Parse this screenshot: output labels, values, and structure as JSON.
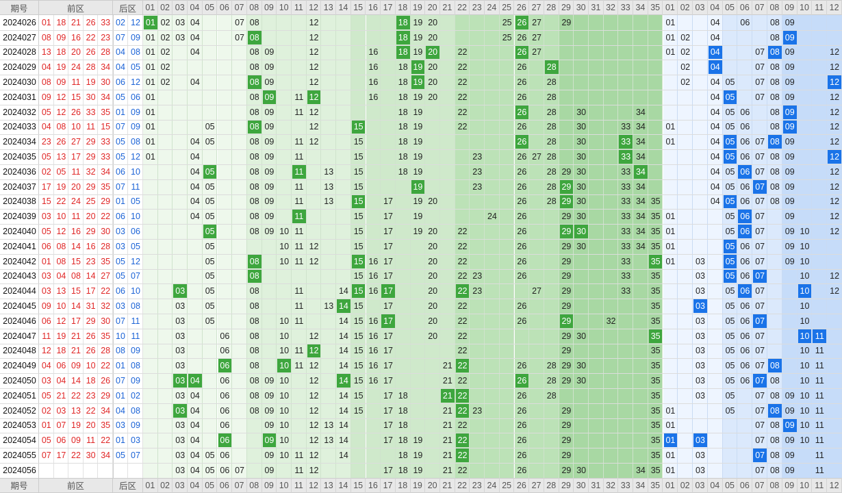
{
  "header": {
    "issue": "期号",
    "front": "前区",
    "back": "后区",
    "front_cols": [
      "01",
      "02",
      "03",
      "04",
      "05",
      "06",
      "07",
      "08",
      "09",
      "10",
      "11",
      "12",
      "13",
      "14",
      "15",
      "16",
      "17",
      "18",
      "19",
      "20",
      "21",
      "22",
      "23",
      "24",
      "25",
      "26",
      "27",
      "28",
      "29",
      "30",
      "31",
      "32",
      "33",
      "34",
      "35"
    ],
    "back_cols": [
      "01",
      "02",
      "03",
      "04",
      "05",
      "06",
      "07",
      "08",
      "09",
      "10",
      "11",
      "12"
    ]
  },
  "rows": [
    {
      "issue": "2024026",
      "front": [
        "01",
        "18",
        "21",
        "26",
        "33"
      ],
      "back": [
        "02",
        "12"
      ],
      "fz": [
        "01",
        "02",
        "03",
        "04",
        "07",
        "08",
        "12",
        "18",
        "19",
        "20",
        "25",
        "26",
        "27",
        "29"
      ],
      "fh": [
        "01",
        "18",
        "26"
      ],
      "bz": [
        "01",
        "04",
        "06",
        "08",
        "09"
      ],
      "bh": []
    },
    {
      "issue": "2024027",
      "front": [
        "08",
        "09",
        "16",
        "22",
        "23"
      ],
      "back": [
        "07",
        "09"
      ],
      "fz": [
        "01",
        "02",
        "03",
        "04",
        "07",
        "08",
        "12",
        "18",
        "19",
        "20",
        "25",
        "26",
        "27"
      ],
      "fh": [
        "08",
        "18"
      ],
      "bz": [
        "01",
        "02",
        "04",
        "08",
        "09"
      ],
      "bh": [
        "09"
      ]
    },
    {
      "issue": "2024028",
      "front": [
        "13",
        "18",
        "20",
        "26",
        "28"
      ],
      "back": [
        "04",
        "08"
      ],
      "fz": [
        "01",
        "02",
        "04",
        "08",
        "09",
        "12",
        "16",
        "18",
        "19",
        "20",
        "22",
        "26",
        "27"
      ],
      "fh": [
        "18",
        "20",
        "26"
      ],
      "bz": [
        "01",
        "02",
        "04",
        "07",
        "08",
        "09",
        "12"
      ],
      "bh": [
        "04",
        "08"
      ]
    },
    {
      "issue": "2024029",
      "front": [
        "04",
        "19",
        "24",
        "28",
        "34"
      ],
      "back": [
        "04",
        "05"
      ],
      "fz": [
        "01",
        "02",
        "08",
        "09",
        "12",
        "16",
        "18",
        "19",
        "20",
        "22",
        "26",
        "28"
      ],
      "fh": [
        "19",
        "28"
      ],
      "bz": [
        "02",
        "04",
        "07",
        "08",
        "09",
        "12"
      ],
      "bh": [
        "04"
      ]
    },
    {
      "issue": "2024030",
      "front": [
        "08",
        "09",
        "11",
        "19",
        "30"
      ],
      "back": [
        "06",
        "12"
      ],
      "fz": [
        "01",
        "02",
        "04",
        "08",
        "09",
        "12",
        "16",
        "18",
        "19",
        "20",
        "22",
        "26",
        "28"
      ],
      "fh": [
        "08",
        "19"
      ],
      "bz": [
        "02",
        "04",
        "05",
        "07",
        "08",
        "09",
        "12"
      ],
      "bh": [
        "12"
      ]
    },
    {
      "issue": "2024031",
      "front": [
        "09",
        "12",
        "15",
        "30",
        "34"
      ],
      "back": [
        "05",
        "06"
      ],
      "fz": [
        "01",
        "08",
        "09",
        "11",
        "12",
        "16",
        "18",
        "19",
        "20",
        "22",
        "26",
        "28"
      ],
      "fh": [
        "09",
        "12"
      ],
      "bz": [
        "04",
        "05",
        "07",
        "08",
        "09",
        "12"
      ],
      "bh": [
        "05"
      ]
    },
    {
      "issue": "2024032",
      "front": [
        "05",
        "12",
        "26",
        "33",
        "35"
      ],
      "back": [
        "01",
        "09"
      ],
      "fz": [
        "01",
        "08",
        "09",
        "11",
        "12",
        "18",
        "19",
        "22",
        "26",
        "28",
        "30",
        "34"
      ],
      "fh": [
        "26"
      ],
      "bz": [
        "04",
        "05",
        "06",
        "08",
        "09",
        "12"
      ],
      "bh": [
        "09"
      ]
    },
    {
      "issue": "2024033",
      "front": [
        "04",
        "08",
        "10",
        "11",
        "15"
      ],
      "back": [
        "07",
        "09"
      ],
      "fz": [
        "01",
        "05",
        "08",
        "09",
        "12",
        "15",
        "18",
        "19",
        "22",
        "26",
        "28",
        "30",
        "33",
        "34"
      ],
      "fh": [
        "08",
        "15"
      ],
      "bz": [
        "01",
        "04",
        "05",
        "06",
        "08",
        "09",
        "12"
      ],
      "bh": [
        "09"
      ]
    },
    {
      "issue": "2024034",
      "front": [
        "23",
        "26",
        "27",
        "29",
        "33"
      ],
      "back": [
        "05",
        "08"
      ],
      "fz": [
        "01",
        "04",
        "05",
        "08",
        "09",
        "11",
        "12",
        "15",
        "18",
        "19",
        "26",
        "28",
        "30",
        "33",
        "34"
      ],
      "fh": [
        "26",
        "33"
      ],
      "bz": [
        "01",
        "04",
        "05",
        "06",
        "07",
        "08",
        "09",
        "12"
      ],
      "bh": [
        "05",
        "08"
      ]
    },
    {
      "issue": "2024035",
      "front": [
        "05",
        "13",
        "17",
        "29",
        "33"
      ],
      "back": [
        "05",
        "12"
      ],
      "fz": [
        "01",
        "04",
        "08",
        "09",
        "11",
        "15",
        "18",
        "19",
        "23",
        "26",
        "27",
        "28",
        "30",
        "33",
        "34"
      ],
      "fh": [
        "33"
      ],
      "bz": [
        "04",
        "05",
        "06",
        "07",
        "08",
        "09",
        "12"
      ],
      "bh": [
        "05",
        "12"
      ]
    },
    {
      "issue": "2024036",
      "front": [
        "02",
        "05",
        "11",
        "32",
        "34"
      ],
      "back": [
        "06",
        "10"
      ],
      "fz": [
        "04",
        "05",
        "08",
        "09",
        "11",
        "13",
        "15",
        "18",
        "19",
        "23",
        "26",
        "28",
        "29",
        "30",
        "33",
        "34"
      ],
      "fh": [
        "05",
        "11",
        "34"
      ],
      "bz": [
        "04",
        "05",
        "06",
        "07",
        "08",
        "09",
        "12"
      ],
      "bh": [
        "06"
      ]
    },
    {
      "issue": "2024037",
      "front": [
        "17",
        "19",
        "20",
        "29",
        "35"
      ],
      "back": [
        "07",
        "11"
      ],
      "fz": [
        "04",
        "05",
        "08",
        "09",
        "11",
        "13",
        "15",
        "19",
        "23",
        "26",
        "28",
        "29",
        "30",
        "33",
        "34"
      ],
      "fh": [
        "19",
        "29"
      ],
      "bz": [
        "04",
        "05",
        "06",
        "07",
        "08",
        "09",
        "12"
      ],
      "bh": [
        "07"
      ]
    },
    {
      "issue": "2024038",
      "front": [
        "15",
        "22",
        "24",
        "25",
        "29"
      ],
      "back": [
        "01",
        "05"
      ],
      "fz": [
        "04",
        "05",
        "08",
        "09",
        "11",
        "13",
        "15",
        "17",
        "19",
        "20",
        "26",
        "28",
        "29",
        "30",
        "33",
        "34",
        "35"
      ],
      "fh": [
        "15",
        "29"
      ],
      "bz": [
        "04",
        "05",
        "06",
        "07",
        "08",
        "09",
        "12"
      ],
      "bh": [
        "05"
      ]
    },
    {
      "issue": "2024039",
      "front": [
        "03",
        "10",
        "11",
        "20",
        "22"
      ],
      "back": [
        "06",
        "10"
      ],
      "fz": [
        "04",
        "05",
        "08",
        "09",
        "11",
        "15",
        "17",
        "19",
        "24",
        "26",
        "29",
        "30",
        "33",
        "34",
        "35"
      ],
      "fh": [
        "11"
      ],
      "bz": [
        "01",
        "05",
        "06",
        "07",
        "09",
        "12"
      ],
      "bh": [
        "06"
      ]
    },
    {
      "issue": "2024040",
      "front": [
        "05",
        "12",
        "16",
        "29",
        "30"
      ],
      "back": [
        "03",
        "06"
      ],
      "fz": [
        "05",
        "08",
        "09",
        "10",
        "11",
        "15",
        "17",
        "19",
        "20",
        "22",
        "26",
        "29",
        "30",
        "33",
        "34",
        "35"
      ],
      "fh": [
        "05",
        "29",
        "30"
      ],
      "bz": [
        "01",
        "05",
        "06",
        "07",
        "09",
        "10",
        "12"
      ],
      "bh": [
        "06"
      ]
    },
    {
      "issue": "2024041",
      "front": [
        "06",
        "08",
        "14",
        "16",
        "28"
      ],
      "back": [
        "03",
        "05"
      ],
      "fz": [
        "05",
        "10",
        "11",
        "12",
        "15",
        "17",
        "20",
        "22",
        "26",
        "29",
        "30",
        "33",
        "34",
        "35"
      ],
      "fh": [],
      "bz": [
        "01",
        "05",
        "06",
        "07",
        "09",
        "10"
      ],
      "bh": [
        "05"
      ]
    },
    {
      "issue": "2024042",
      "front": [
        "01",
        "08",
        "15",
        "23",
        "35"
      ],
      "back": [
        "05",
        "12"
      ],
      "fz": [
        "05",
        "08",
        "10",
        "11",
        "12",
        "15",
        "16",
        "17",
        "20",
        "22",
        "26",
        "29",
        "33",
        "35"
      ],
      "fh": [
        "08",
        "15",
        "35"
      ],
      "bz": [
        "01",
        "03",
        "05",
        "06",
        "07",
        "09",
        "10"
      ],
      "bh": [
        "05"
      ]
    },
    {
      "issue": "2024043",
      "front": [
        "03",
        "04",
        "08",
        "14",
        "27"
      ],
      "back": [
        "05",
        "07"
      ],
      "fz": [
        "05",
        "08",
        "15",
        "16",
        "17",
        "20",
        "22",
        "23",
        "26",
        "29",
        "33",
        "35"
      ],
      "fh": [
        "08"
      ],
      "bz": [
        "03",
        "05",
        "06",
        "07",
        "10",
        "12"
      ],
      "bh": [
        "05",
        "07"
      ]
    },
    {
      "issue": "2024044",
      "front": [
        "03",
        "13",
        "15",
        "17",
        "22"
      ],
      "back": [
        "06",
        "10"
      ],
      "fz": [
        "03",
        "05",
        "08",
        "11",
        "14",
        "15",
        "16",
        "17",
        "20",
        "22",
        "23",
        "27",
        "29",
        "33",
        "35"
      ],
      "fh": [
        "03",
        "15",
        "17",
        "22"
      ],
      "bz": [
        "03",
        "05",
        "06",
        "07",
        "10",
        "12"
      ],
      "bh": [
        "06",
        "10"
      ]
    },
    {
      "issue": "2024045",
      "front": [
        "09",
        "10",
        "14",
        "31",
        "32"
      ],
      "back": [
        "03",
        "08"
      ],
      "fz": [
        "03",
        "05",
        "08",
        "11",
        "13",
        "14",
        "15",
        "17",
        "20",
        "22",
        "26",
        "29",
        "35"
      ],
      "fh": [
        "14"
      ],
      "bz": [
        "03",
        "05",
        "06",
        "07",
        "10"
      ],
      "bh": [
        "03"
      ]
    },
    {
      "issue": "2024046",
      "front": [
        "06",
        "12",
        "17",
        "29",
        "30"
      ],
      "back": [
        "07",
        "11"
      ],
      "fz": [
        "03",
        "05",
        "08",
        "10",
        "11",
        "14",
        "15",
        "16",
        "17",
        "20",
        "22",
        "26",
        "29",
        "32",
        "35"
      ],
      "fh": [
        "17",
        "29"
      ],
      "bz": [
        "03",
        "05",
        "06",
        "07",
        "10"
      ],
      "bh": [
        "07"
      ]
    },
    {
      "issue": "2024047",
      "front": [
        "11",
        "19",
        "21",
        "26",
        "35"
      ],
      "back": [
        "10",
        "11"
      ],
      "fz": [
        "03",
        "06",
        "08",
        "10",
        "12",
        "14",
        "15",
        "16",
        "17",
        "20",
        "22",
        "29",
        "30",
        "35"
      ],
      "fh": [
        "35"
      ],
      "bz": [
        "03",
        "05",
        "06",
        "07",
        "10",
        "11"
      ],
      "bh": [
        "10",
        "11"
      ]
    },
    {
      "issue": "2024048",
      "front": [
        "12",
        "18",
        "21",
        "26",
        "28"
      ],
      "back": [
        "08",
        "09"
      ],
      "fz": [
        "03",
        "06",
        "08",
        "10",
        "11",
        "12",
        "14",
        "15",
        "16",
        "17",
        "22",
        "29",
        "35"
      ],
      "fh": [
        "12"
      ],
      "bz": [
        "03",
        "05",
        "06",
        "07",
        "10",
        "11"
      ],
      "bh": []
    },
    {
      "issue": "2024049",
      "front": [
        "04",
        "06",
        "09",
        "10",
        "22"
      ],
      "back": [
        "01",
        "08"
      ],
      "fz": [
        "03",
        "06",
        "08",
        "10",
        "11",
        "12",
        "14",
        "15",
        "16",
        "17",
        "21",
        "22",
        "26",
        "28",
        "29",
        "30",
        "35"
      ],
      "fh": [
        "06",
        "10",
        "22"
      ],
      "bz": [
        "03",
        "05",
        "06",
        "07",
        "08",
        "10",
        "11"
      ],
      "bh": [
        "08"
      ]
    },
    {
      "issue": "2024050",
      "front": [
        "03",
        "04",
        "14",
        "18",
        "26"
      ],
      "back": [
        "07",
        "09"
      ],
      "fz": [
        "03",
        "04",
        "06",
        "08",
        "09",
        "10",
        "12",
        "14",
        "15",
        "16",
        "17",
        "21",
        "22",
        "26",
        "28",
        "29",
        "30",
        "35"
      ],
      "fh": [
        "03",
        "04",
        "14",
        "26"
      ],
      "bz": [
        "03",
        "05",
        "06",
        "07",
        "08",
        "10",
        "11"
      ],
      "bh": [
        "07"
      ]
    },
    {
      "issue": "2024051",
      "front": [
        "05",
        "21",
        "22",
        "23",
        "29"
      ],
      "back": [
        "01",
        "02"
      ],
      "fz": [
        "03",
        "04",
        "06",
        "08",
        "09",
        "10",
        "12",
        "14",
        "15",
        "17",
        "18",
        "21",
        "22",
        "26",
        "28",
        "35"
      ],
      "fh": [
        "21",
        "22"
      ],
      "bz": [
        "03",
        "05",
        "07",
        "08",
        "09",
        "10",
        "11"
      ],
      "bh": []
    },
    {
      "issue": "2024052",
      "front": [
        "02",
        "03",
        "13",
        "22",
        "34"
      ],
      "back": [
        "04",
        "08"
      ],
      "fz": [
        "03",
        "04",
        "06",
        "08",
        "09",
        "10",
        "12",
        "14",
        "15",
        "17",
        "18",
        "21",
        "22",
        "23",
        "26",
        "29",
        "35"
      ],
      "fh": [
        "03",
        "22"
      ],
      "bz": [
        "01",
        "05",
        "07",
        "08",
        "09",
        "10",
        "11"
      ],
      "bh": [
        "08"
      ]
    },
    {
      "issue": "2024053",
      "front": [
        "01",
        "07",
        "19",
        "20",
        "35"
      ],
      "back": [
        "03",
        "09"
      ],
      "fz": [
        "03",
        "04",
        "06",
        "09",
        "10",
        "12",
        "13",
        "14",
        "17",
        "18",
        "21",
        "22",
        "26",
        "29",
        "35"
      ],
      "fh": [],
      "bz": [
        "01",
        "07",
        "08",
        "09",
        "10",
        "11"
      ],
      "bh": [
        "09"
      ]
    },
    {
      "issue": "2024054",
      "front": [
        "05",
        "06",
        "09",
        "11",
        "22"
      ],
      "back": [
        "01",
        "03"
      ],
      "fz": [
        "03",
        "04",
        "06",
        "09",
        "10",
        "12",
        "13",
        "14",
        "17",
        "18",
        "19",
        "21",
        "22",
        "26",
        "29",
        "35"
      ],
      "fh": [
        "06",
        "09",
        "22"
      ],
      "bz": [
        "01",
        "03",
        "07",
        "08",
        "09",
        "10",
        "11"
      ],
      "bh": [
        "01",
        "03"
      ]
    },
    {
      "issue": "2024055",
      "front": [
        "07",
        "17",
        "22",
        "30",
        "34"
      ],
      "back": [
        "05",
        "07"
      ],
      "fz": [
        "03",
        "04",
        "05",
        "06",
        "09",
        "10",
        "11",
        "12",
        "14",
        "18",
        "19",
        "21",
        "22",
        "26",
        "29",
        "35"
      ],
      "fh": [
        "22"
      ],
      "bz": [
        "01",
        "03",
        "07",
        "08",
        "09",
        "11"
      ],
      "bh": [
        "07"
      ]
    },
    {
      "issue": "2024056",
      "front": [],
      "back": [],
      "fz": [
        "03",
        "04",
        "05",
        "06",
        "07",
        "09",
        "11",
        "12",
        "17",
        "18",
        "19",
        "21",
        "22",
        "26",
        "29",
        "30",
        "34",
        "35"
      ],
      "fh": [],
      "bz": [
        "01",
        "03",
        "07",
        "08",
        "09",
        "11"
      ],
      "bh": []
    }
  ]
}
